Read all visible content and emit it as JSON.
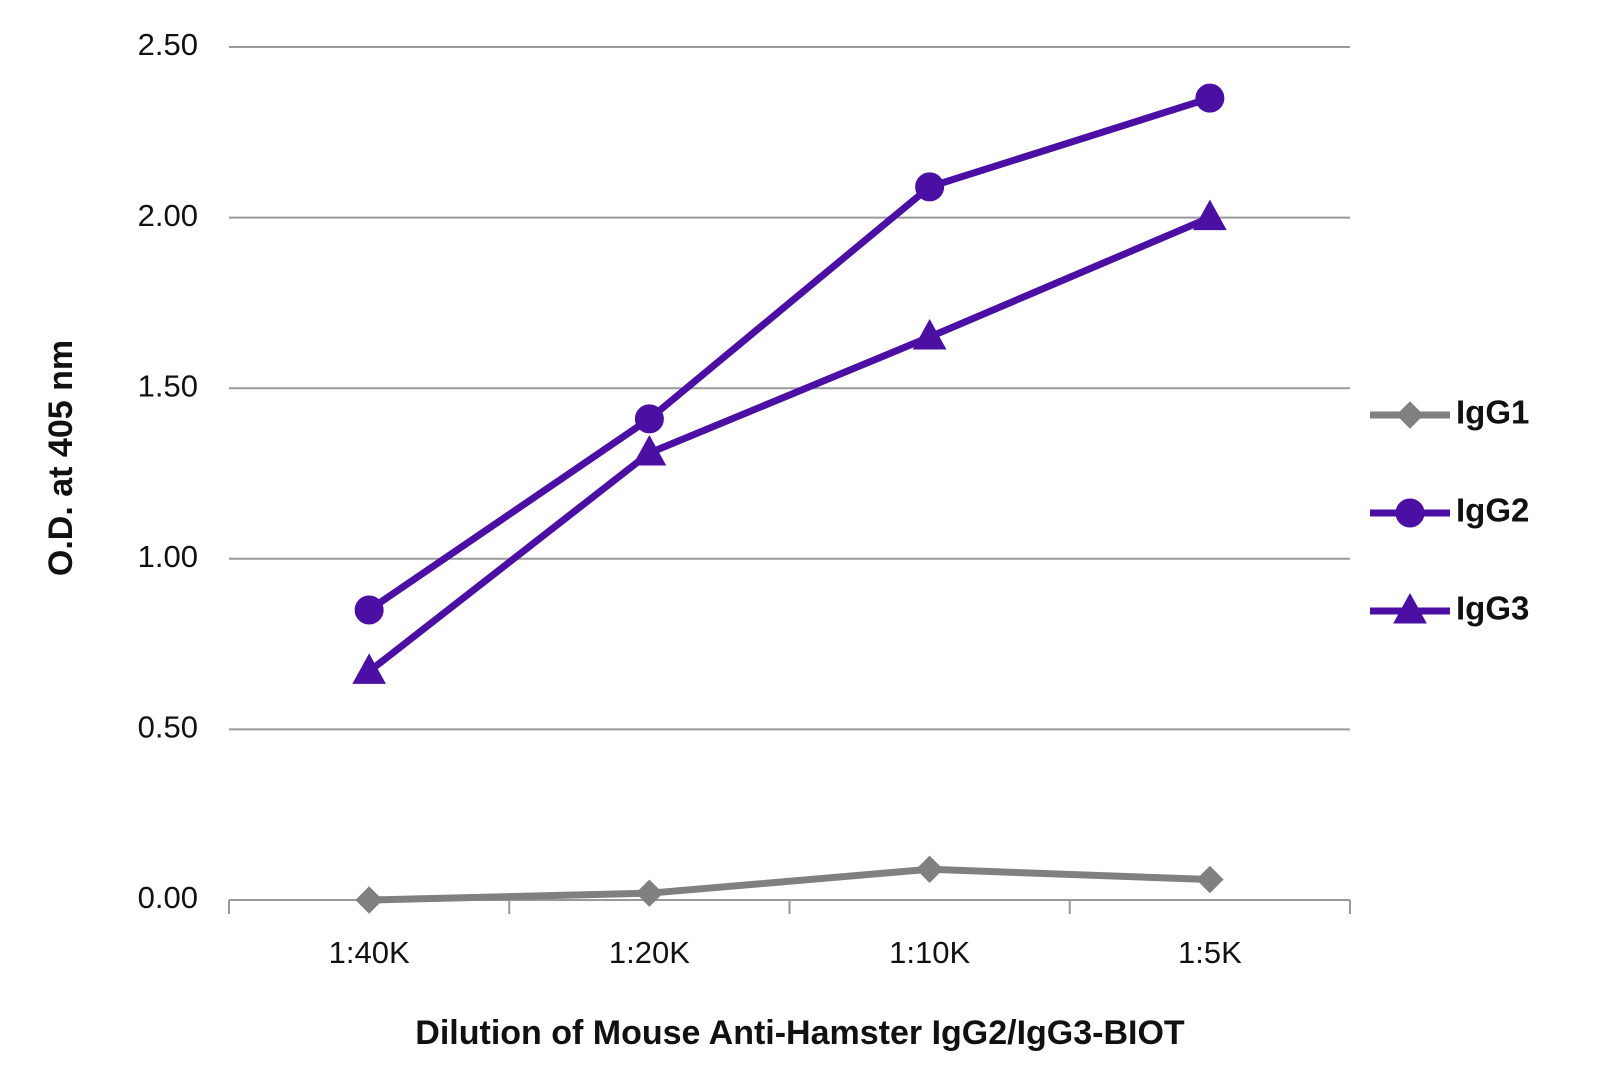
{
  "chart_data": {
    "type": "line",
    "x_label": "Dilution of Mouse Anti-Hamster IgG2/IgG3-BIOT",
    "y_label": "O.D. at 405 nm",
    "categories": [
      "1:40K",
      "1:20K",
      "1:10K",
      "1:5K"
    ],
    "series": [
      {
        "name": "IgG1",
        "color": "#808080",
        "marker": "diamond",
        "values": [
          0.0,
          0.02,
          0.09,
          0.06
        ]
      },
      {
        "name": "IgG2",
        "color": "#4b0fa3",
        "marker": "circle",
        "values": [
          0.85,
          1.41,
          2.09,
          2.35
        ]
      },
      {
        "name": "IgG3",
        "color": "#4b0fa3",
        "marker": "triangle",
        "values": [
          0.67,
          1.31,
          1.65,
          2.0
        ]
      }
    ],
    "ylim": [
      0,
      2.5
    ],
    "yticks": [
      {
        "value": 0,
        "label": "0.00"
      },
      {
        "value": 0.5,
        "label": "0.50"
      },
      {
        "value": 1,
        "label": "1.00"
      },
      {
        "value": 1.5,
        "label": "1.50"
      },
      {
        "value": 2,
        "label": "2.00"
      },
      {
        "value": 2.5,
        "label": "2.50"
      }
    ],
    "grid": true,
    "legend": "right"
  }
}
